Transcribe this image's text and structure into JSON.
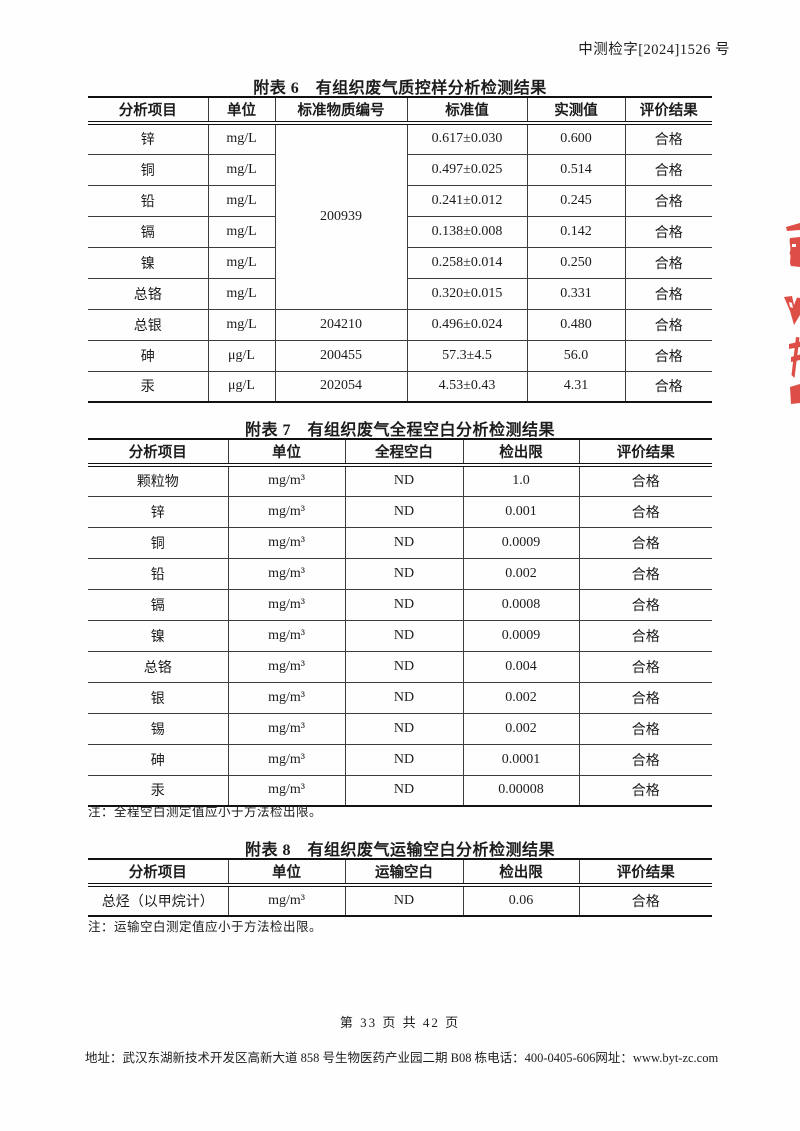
{
  "page": {
    "doc_number": "中测检字[2024]1526 号",
    "page_footer": "第 33 页 共 42 页",
    "footer_address": "地址：武汉东湖新技术开发区高新大道 858 号生物医药产业园二期 B08 栋",
    "footer_phone": "电话：400-0405-606",
    "footer_web": "网址：www.byt-zc.com"
  },
  "colors": {
    "seal": "#dd4f46"
  },
  "table6": {
    "title": "附表 6　有组织废气质控样分析检测结果",
    "headers": [
      "分析项目",
      "单位",
      "标准物质编号",
      "标准值",
      "实测值",
      "评价结果"
    ],
    "rows": [
      [
        "锌",
        "mg/L",
        {
          "text": "200939",
          "rowspan": 6
        },
        "0.617±0.030",
        "0.600",
        "合格"
      ],
      [
        "铜",
        "mg/L",
        null,
        "0.497±0.025",
        "0.514",
        "合格"
      ],
      [
        "铅",
        "mg/L",
        null,
        "0.241±0.012",
        "0.245",
        "合格"
      ],
      [
        "镉",
        "mg/L",
        null,
        "0.138±0.008",
        "0.142",
        "合格"
      ],
      [
        "镍",
        "mg/L",
        null,
        "0.258±0.014",
        "0.250",
        "合格"
      ],
      [
        "总铬",
        "mg/L",
        null,
        "0.320±0.015",
        "0.331",
        "合格"
      ],
      [
        "总银",
        "mg/L",
        "204210",
        "0.496±0.024",
        "0.480",
        "合格"
      ],
      [
        "砷",
        "μg/L",
        "200455",
        "57.3±4.5",
        "56.0",
        "合格"
      ],
      [
        "汞",
        "μg/L",
        "202054",
        "4.53±0.43",
        "4.31",
        "合格"
      ]
    ]
  },
  "table7": {
    "title": "附表 7　有组织废气全程空白分析检测结果",
    "headers": [
      "分析项目",
      "单位",
      "全程空白",
      "检出限",
      "评价结果"
    ],
    "rows": [
      [
        "颗粒物",
        "mg/m³",
        "ND",
        "1.0",
        "合格"
      ],
      [
        "锌",
        "mg/m³",
        "ND",
        "0.001",
        "合格"
      ],
      [
        "铜",
        "mg/m³",
        "ND",
        "0.0009",
        "合格"
      ],
      [
        "铅",
        "mg/m³",
        "ND",
        "0.002",
        "合格"
      ],
      [
        "镉",
        "mg/m³",
        "ND",
        "0.0008",
        "合格"
      ],
      [
        "镍",
        "mg/m³",
        "ND",
        "0.0009",
        "合格"
      ],
      [
        "总铬",
        "mg/m³",
        "ND",
        "0.004",
        "合格"
      ],
      [
        "银",
        "mg/m³",
        "ND",
        "0.002",
        "合格"
      ],
      [
        "锡",
        "mg/m³",
        "ND",
        "0.002",
        "合格"
      ],
      [
        "砷",
        "mg/m³",
        "ND",
        "0.0001",
        "合格"
      ],
      [
        "汞",
        "mg/m³",
        "ND",
        "0.00008",
        "合格"
      ]
    ],
    "note": "注：全程空白测定值应小于方法检出限。"
  },
  "table8": {
    "title": "附表 8　有组织废气运输空白分析检测结果",
    "headers": [
      "分析项目",
      "单位",
      "运输空白",
      "检出限",
      "评价结果"
    ],
    "rows": [
      [
        "总烃（以甲烷计）",
        "mg/m³",
        "ND",
        "0.06",
        "合格"
      ]
    ],
    "note": "注：运输空白测定值应小于方法检出限。"
  }
}
